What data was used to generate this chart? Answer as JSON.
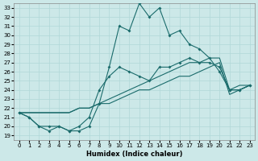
{
  "xlabel": "Humidex (Indice chaleur)",
  "xlim": [
    -0.5,
    23.5
  ],
  "ylim": [
    18.5,
    33.5
  ],
  "yticks": [
    19,
    20,
    21,
    22,
    23,
    24,
    25,
    26,
    27,
    28,
    29,
    30,
    31,
    32,
    33
  ],
  "xticks": [
    0,
    1,
    2,
    3,
    4,
    5,
    6,
    7,
    8,
    9,
    10,
    11,
    12,
    13,
    14,
    15,
    16,
    17,
    18,
    19,
    20,
    21,
    22,
    23
  ],
  "bg_color": "#cce8e8",
  "grid_color": "#b0d8d8",
  "line_color": "#1a6b6b",
  "line1_x": [
    0,
    1,
    2,
    3,
    4,
    5,
    6,
    7,
    8,
    9,
    10,
    11,
    12,
    13,
    14,
    15,
    16,
    17,
    18,
    19,
    20,
    21,
    22,
    23
  ],
  "line1_y": [
    21.5,
    21.0,
    20.0,
    19.5,
    20.0,
    19.5,
    19.5,
    20.0,
    22.5,
    26.5,
    31.0,
    30.5,
    33.5,
    32.0,
    33.0,
    30.0,
    30.5,
    29.0,
    28.5,
    27.5,
    26.0,
    24.0,
    24.0,
    24.5
  ],
  "line2_x": [
    0,
    1,
    2,
    3,
    4,
    5,
    6,
    7,
    8,
    9,
    10,
    11,
    12,
    13,
    14,
    15,
    16,
    17,
    18,
    19,
    20,
    21,
    22,
    23
  ],
  "line2_y": [
    21.5,
    21.0,
    20.0,
    20.0,
    20.0,
    19.5,
    20.0,
    21.0,
    24.0,
    25.5,
    26.5,
    26.0,
    25.5,
    25.0,
    26.5,
    26.5,
    27.0,
    27.5,
    27.0,
    27.0,
    26.5,
    24.0,
    24.0,
    24.5
  ],
  "line3_x": [
    0,
    1,
    2,
    3,
    4,
    5,
    6,
    7,
    8,
    9,
    10,
    11,
    12,
    13,
    14,
    15,
    16,
    17,
    18,
    19,
    20,
    21,
    22,
    23
  ],
  "line3_y": [
    21.5,
    21.5,
    21.5,
    21.5,
    21.5,
    21.5,
    22.0,
    22.0,
    22.5,
    22.5,
    23.0,
    23.5,
    24.0,
    24.0,
    24.5,
    25.0,
    25.5,
    25.5,
    26.0,
    26.5,
    27.0,
    23.5,
    24.0,
    24.5
  ],
  "line4_x": [
    0,
    1,
    2,
    3,
    4,
    5,
    6,
    7,
    8,
    9,
    10,
    11,
    12,
    13,
    14,
    15,
    16,
    17,
    18,
    19,
    20,
    21,
    22,
    23
  ],
  "line4_y": [
    21.5,
    21.5,
    21.5,
    21.5,
    21.5,
    21.5,
    22.0,
    22.0,
    22.5,
    23.0,
    23.5,
    24.0,
    24.5,
    25.0,
    25.5,
    26.0,
    26.5,
    27.0,
    27.0,
    27.5,
    27.5,
    24.0,
    24.5,
    24.5
  ]
}
